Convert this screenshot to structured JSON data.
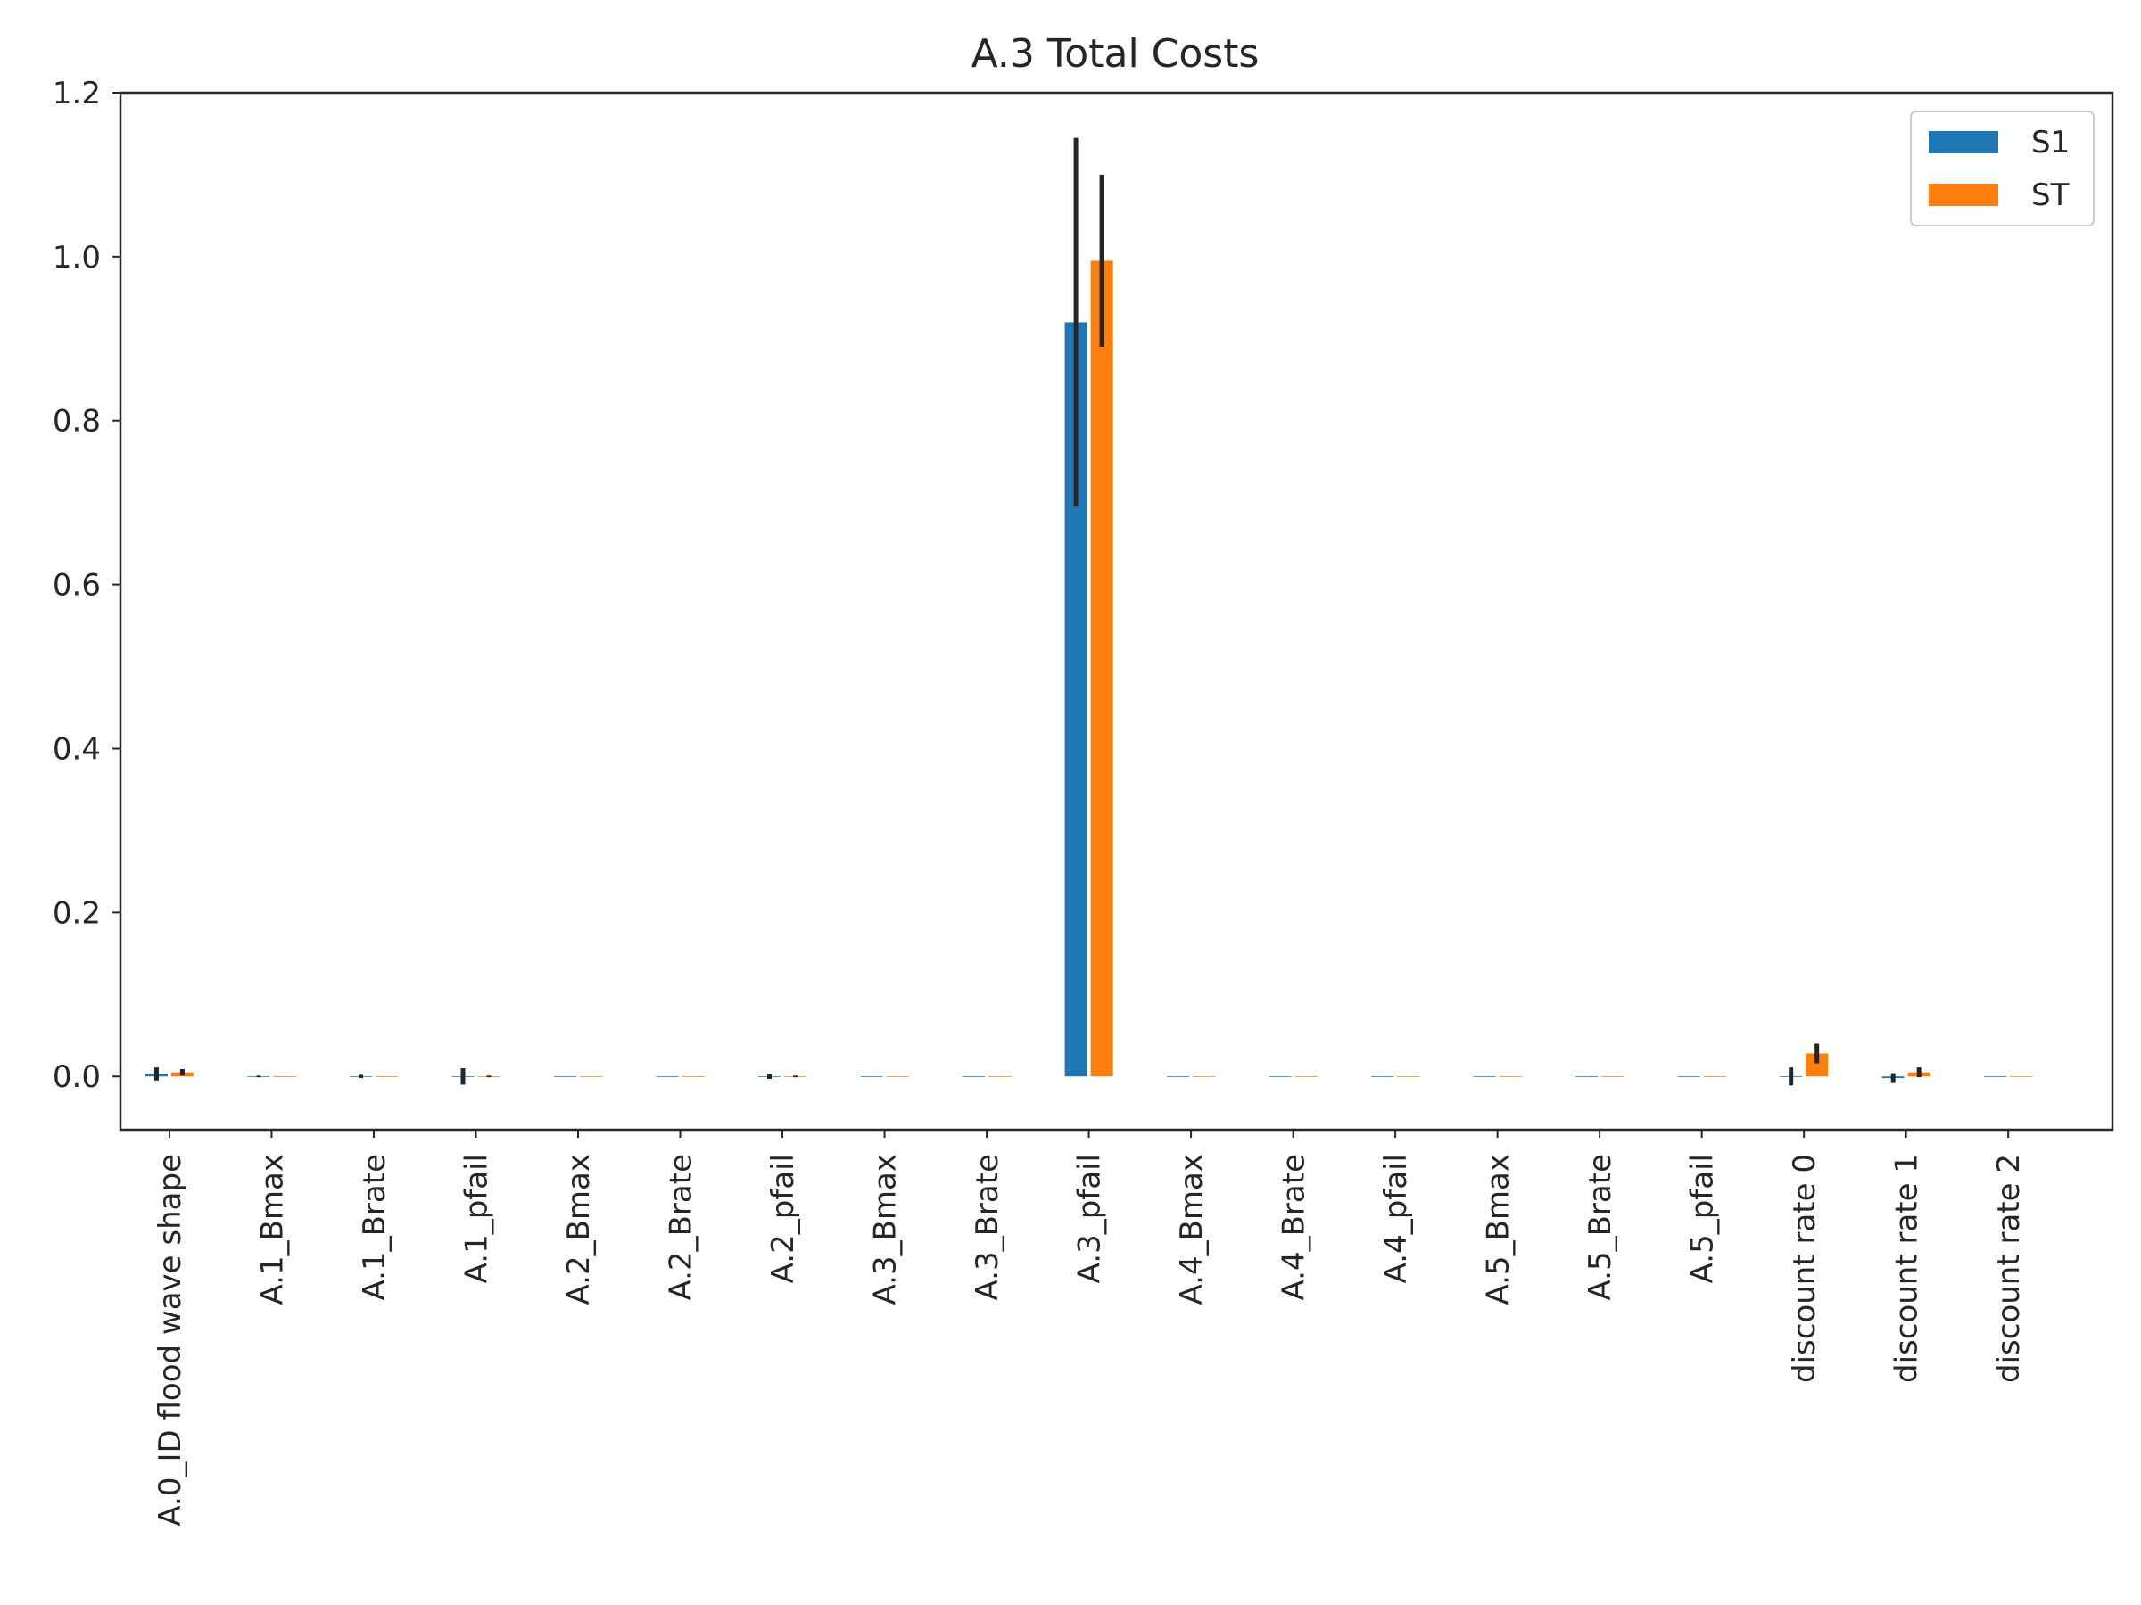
{
  "chart_data": {
    "type": "bar",
    "title": "A.3 Total Costs",
    "xlabel": "",
    "ylabel": "",
    "ylim": [
      -0.065,
      1.2
    ],
    "yticks": [
      0.0,
      0.2,
      0.4,
      0.6,
      0.8,
      1.0,
      1.2
    ],
    "ytick_labels": [
      "0.0",
      "0.2",
      "0.4",
      "0.6",
      "0.8",
      "1.0",
      "1.2"
    ],
    "grid": false,
    "legend_position": "top-right",
    "categories": [
      "A.0_ID flood wave shape",
      "A.1_Bmax",
      "A.1_Brate",
      "A.1_pfail",
      "A.2_Bmax",
      "A.2_Brate",
      "A.2_pfail",
      "A.3_Bmax",
      "A.3_Brate",
      "A.3_pfail",
      "A.4_Bmax",
      "A.4_Brate",
      "A.4_pfail",
      "A.5_Bmax",
      "A.5_Brate",
      "A.5_pfail",
      "discount rate 0",
      "discount rate 1",
      "discount rate 2"
    ],
    "series": [
      {
        "name": "S1",
        "color": "#1f77b4",
        "values": [
          0.003,
          0.0,
          0.0,
          0.0,
          0.0,
          0.0,
          0.0,
          0.0,
          0.0,
          0.92,
          0.0,
          0.0,
          0.0,
          0.0,
          0.0,
          0.0,
          0.0,
          -0.002,
          0.0
        ],
        "errors": [
          0.008,
          0.001,
          0.002,
          0.01,
          0.0,
          0.0,
          0.003,
          0.0,
          0.0,
          0.225,
          0.0,
          0.0,
          0.0,
          0.0,
          0.0,
          0.0,
          0.011,
          0.006,
          0.0
        ]
      },
      {
        "name": "ST",
        "color": "#ff7f0e",
        "values": [
          0.005,
          0.0,
          0.0,
          0.0,
          0.0,
          0.0,
          0.0,
          0.0,
          0.0,
          0.995,
          0.0,
          0.0,
          0.0,
          0.0,
          0.0,
          0.0,
          0.028,
          0.005,
          0.0
        ],
        "errors": [
          0.004,
          0.0,
          0.0,
          0.001,
          0.0,
          0.0,
          0.001,
          0.0,
          0.0,
          0.105,
          0.0,
          0.0,
          0.0,
          0.0,
          0.0,
          0.0,
          0.012,
          0.006,
          0.0
        ]
      }
    ]
  }
}
